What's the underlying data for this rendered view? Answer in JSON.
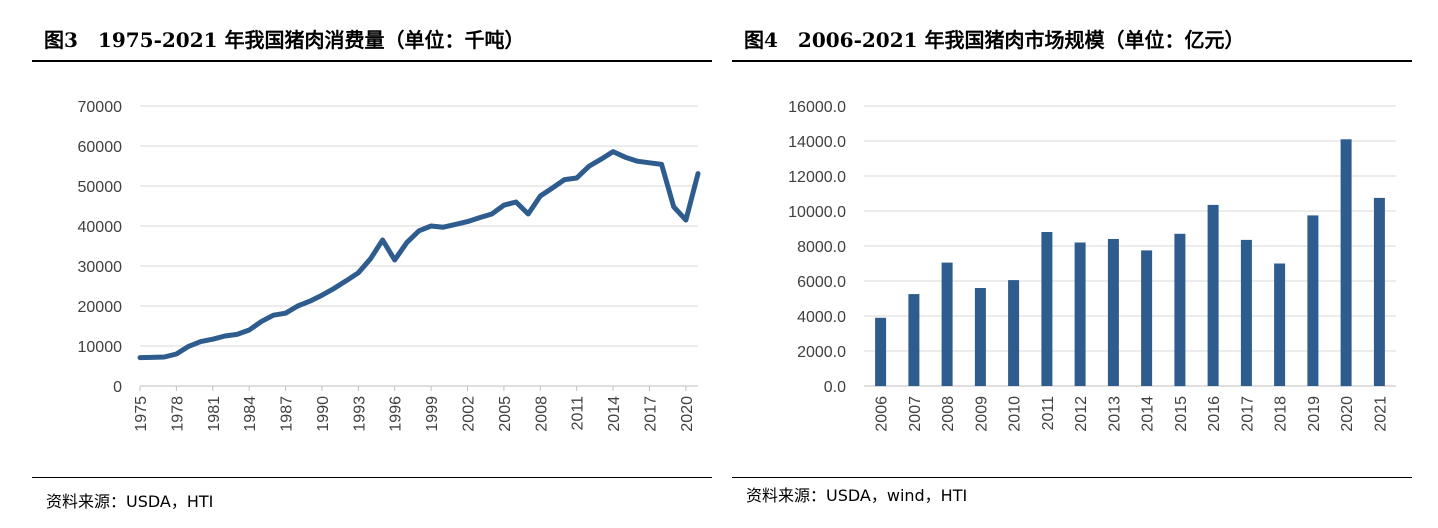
{
  "left": {
    "title": "图3　1975-2021 年我国猪肉消费量（单位：千吨）",
    "source": "资料来源：USDA，HTI"
  },
  "right": {
    "title": "图4　2006-2021 年我国猪肉市场规模（单位：亿元）",
    "source": "资料来源：USDA，wind，HTI"
  },
  "chart_data": [
    {
      "type": "line",
      "title": "",
      "xlabel": "",
      "ylabel": "",
      "color": "#2e5c8e",
      "grid": true,
      "legend": "none",
      "ylim": [
        0,
        70000
      ],
      "yticks": [
        "0",
        "10000",
        "20000",
        "30000",
        "40000",
        "50000",
        "60000",
        "70000"
      ],
      "xticks": [
        "1975",
        "1978",
        "1981",
        "1984",
        "1987",
        "1990",
        "1993",
        "1996",
        "1999",
        "2002",
        "2005",
        "2008",
        "2011",
        "2014",
        "2017",
        "2020"
      ],
      "x": [
        1975,
        1976,
        1977,
        1978,
        1979,
        1980,
        1981,
        1982,
        1983,
        1984,
        1985,
        1986,
        1987,
        1988,
        1989,
        1990,
        1991,
        1992,
        1993,
        1994,
        1995,
        1996,
        1997,
        1998,
        1999,
        2000,
        2001,
        2002,
        2003,
        2004,
        2005,
        2006,
        2007,
        2008,
        2009,
        2010,
        2011,
        2012,
        2013,
        2014,
        2015,
        2016,
        2017,
        2018,
        2019,
        2020,
        2021
      ],
      "values": [
        7100,
        7150,
        7250,
        8000,
        9900,
        11100,
        11700,
        12500,
        12900,
        14000,
        16100,
        17700,
        18200,
        20000,
        21200,
        22700,
        24400,
        26300,
        28300,
        31800,
        36500,
        31500,
        35900,
        38800,
        40000,
        39700,
        40400,
        41100,
        42100,
        43000,
        45200,
        46000,
        43000,
        47500,
        49500,
        51600,
        52000,
        54900,
        56700,
        58600,
        57200,
        56200,
        55800,
        55400,
        44800,
        41500,
        53100
      ]
    },
    {
      "type": "bar",
      "title": "",
      "xlabel": "",
      "ylabel": "",
      "color": "#2e5c8e",
      "grid": true,
      "legend": "none",
      "ylim": [
        0,
        16000
      ],
      "yticks": [
        "0.0",
        "2000.0",
        "4000.0",
        "6000.0",
        "8000.0",
        "10000.0",
        "12000.0",
        "14000.0",
        "16000.0"
      ],
      "categories": [
        "2006",
        "2007",
        "2008",
        "2009",
        "2010",
        "2011",
        "2012",
        "2013",
        "2014",
        "2015",
        "2016",
        "2017",
        "2018",
        "2019",
        "2020",
        "2021"
      ],
      "values": [
        3900,
        5250,
        7050,
        5600,
        6050,
        8800,
        8200,
        8400,
        7750,
        8700,
        10350,
        8350,
        7000,
        9750,
        14100,
        10750
      ]
    }
  ]
}
